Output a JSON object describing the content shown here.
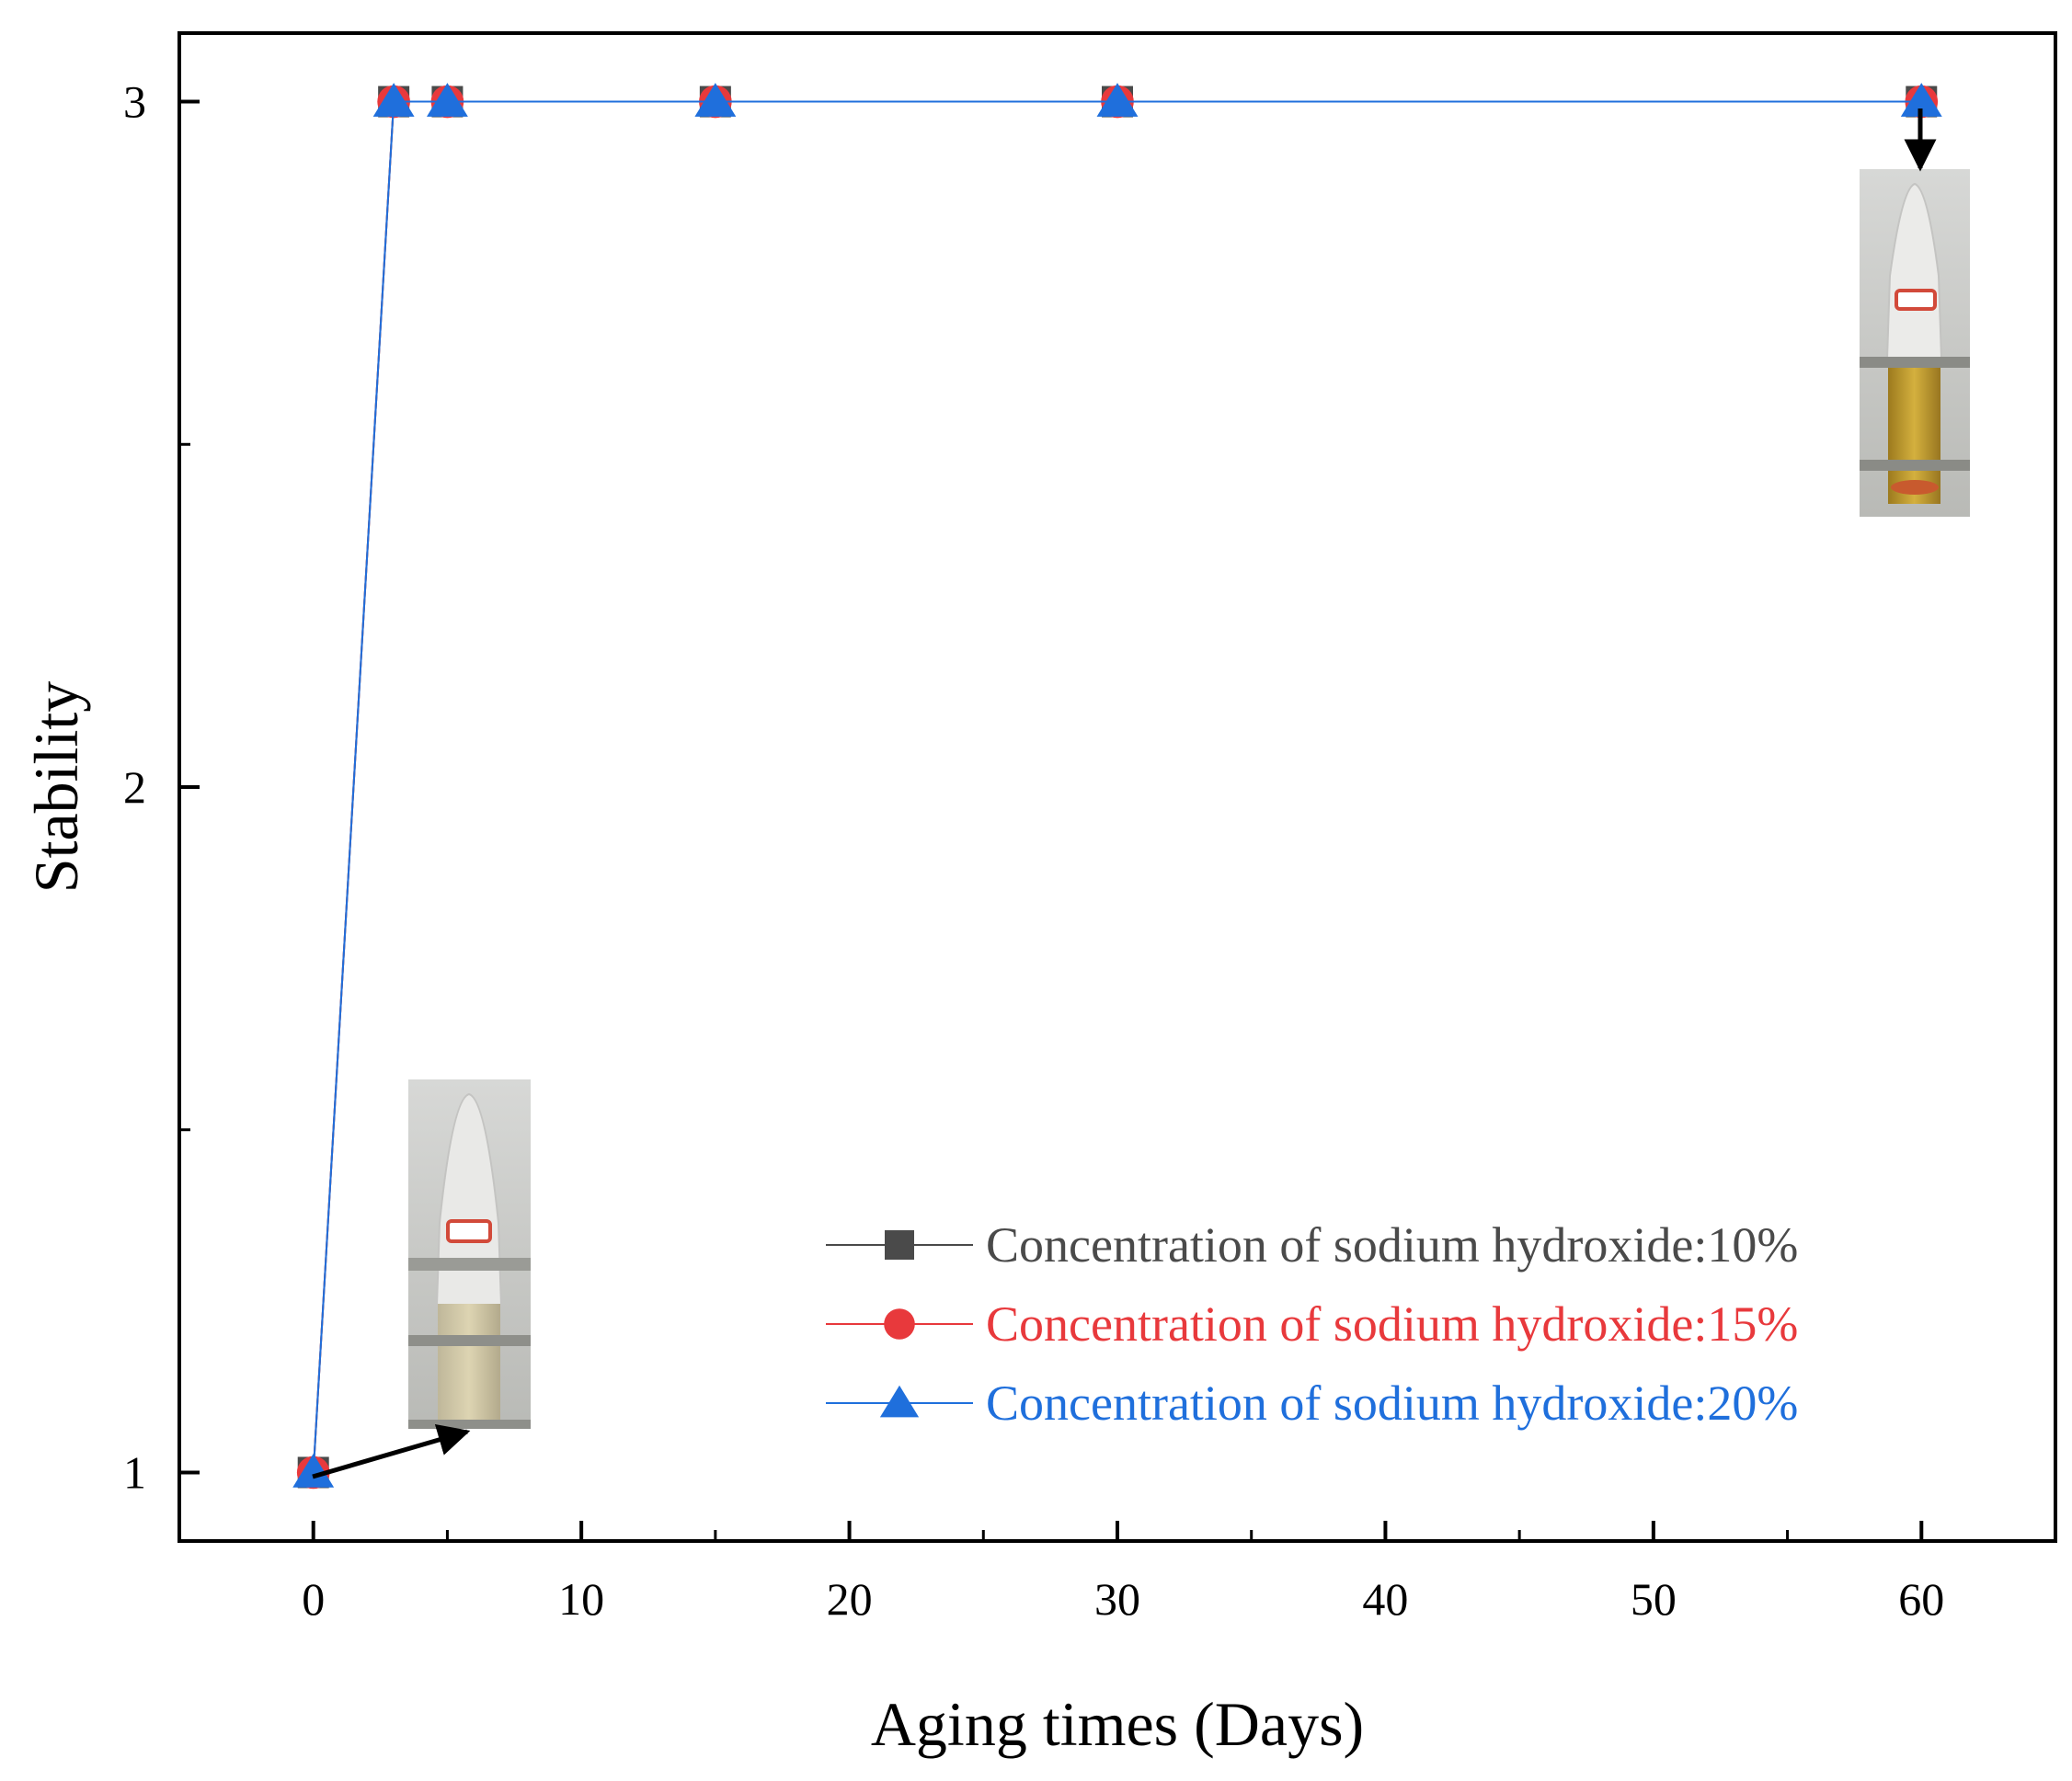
{
  "chart_data": {
    "type": "line",
    "xlabel": "Aging times (Days)",
    "ylabel": "Stability",
    "xlim": [
      -5,
      65
    ],
    "ylim": [
      0.9,
      3.1
    ],
    "x_ticks": [
      0,
      10,
      20,
      30,
      40,
      50,
      60
    ],
    "x_tick_labels": [
      "0",
      "10",
      "20",
      "30",
      "40",
      "50",
      "60"
    ],
    "y_ticks": [
      1,
      2,
      3
    ],
    "y_tick_labels": [
      "1",
      "2",
      "3"
    ],
    "grid": false,
    "legend_position": "bottom-right",
    "x": [
      0,
      3,
      5,
      15,
      30,
      60
    ],
    "series": [
      {
        "name": "Concentration of sodium hydroxide:10%",
        "marker": "square",
        "color": "#4a4a4a",
        "values": [
          1,
          3,
          3,
          3,
          3,
          3
        ]
      },
      {
        "name": "Concentration of sodium hydroxide:15%",
        "marker": "circle",
        "color": "#e8393c",
        "values": [
          1,
          3,
          3,
          3,
          3,
          3
        ]
      },
      {
        "name": "Concentration of sodium hydroxide:20%",
        "marker": "triangle",
        "color": "#1f6fdc",
        "values": [
          1,
          3,
          3,
          3,
          3,
          3
        ]
      }
    ],
    "inset_photos": [
      {
        "name": "day-0-sample-photo",
        "points_to_x": 0,
        "points_to_y": 1
      },
      {
        "name": "day-60-sample-photo",
        "points_to_x": 60,
        "points_to_y": 3
      }
    ]
  }
}
